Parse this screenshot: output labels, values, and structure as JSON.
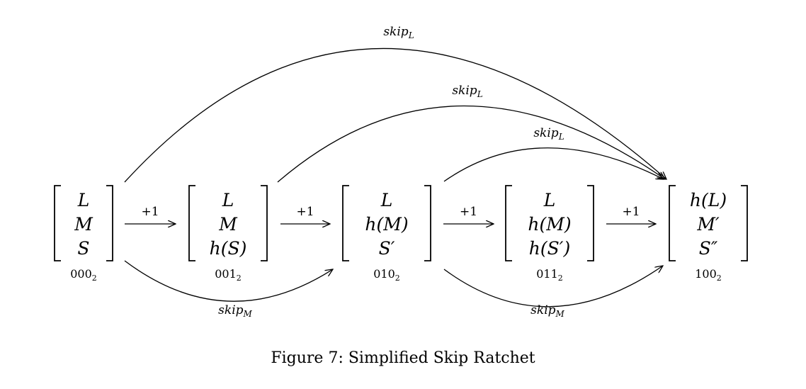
{
  "states": [
    {
      "rows": [
        "L",
        "M",
        "S"
      ],
      "index": "000",
      "index_sub": "2"
    },
    {
      "rows": [
        "L",
        "M",
        "h(S)"
      ],
      "index": "001",
      "index_sub": "2"
    },
    {
      "rows": [
        "L",
        "h(M)",
        "S′"
      ],
      "index": "010",
      "index_sub": "2"
    },
    {
      "rows": [
        "L",
        "h(M)",
        "h(S′)"
      ],
      "index": "011",
      "index_sub": "2"
    },
    {
      "rows": [
        "h(L)",
        "M′",
        "S″"
      ],
      "index": "100",
      "index_sub": "2"
    }
  ],
  "step_label": "+1",
  "skip_labels": {
    "L": {
      "base": "skip",
      "sub": "L"
    },
    "M": {
      "base": "skip",
      "sub": "M"
    }
  },
  "caption": "Figure 7: Simplified Skip Ratchet"
}
